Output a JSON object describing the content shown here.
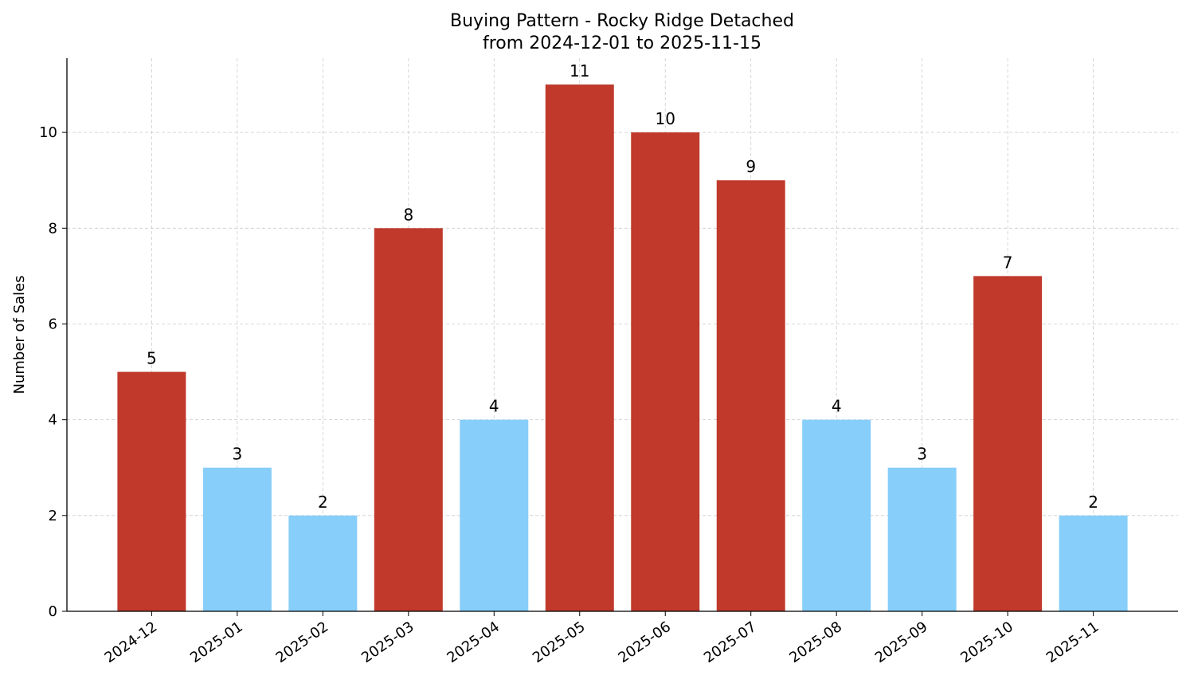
{
  "chart_data": {
    "type": "bar",
    "title": "Buying Pattern - Rocky Ridge Detached",
    "subtitle": "from 2024-12-01 to 2025-11-15",
    "xlabel": "",
    "ylabel": "Number of Sales",
    "categories": [
      "2024-12",
      "2025-01",
      "2025-02",
      "2025-03",
      "2025-04",
      "2025-05",
      "2025-06",
      "2025-07",
      "2025-08",
      "2025-09",
      "2025-10",
      "2025-11"
    ],
    "values": [
      5,
      3,
      2,
      8,
      4,
      11,
      10,
      9,
      4,
      3,
      7,
      2
    ],
    "bar_colors": [
      "#c0392b",
      "#87cefa",
      "#87cefa",
      "#c0392b",
      "#87cefa",
      "#c0392b",
      "#c0392b",
      "#c0392b",
      "#87cefa",
      "#87cefa",
      "#c0392b",
      "#87cefa"
    ],
    "ylim": [
      0,
      11.55
    ],
    "yticks": [
      0,
      2,
      4,
      6,
      8,
      10
    ],
    "grid": true,
    "data_labels": true,
    "xtick_rotation": 35
  }
}
